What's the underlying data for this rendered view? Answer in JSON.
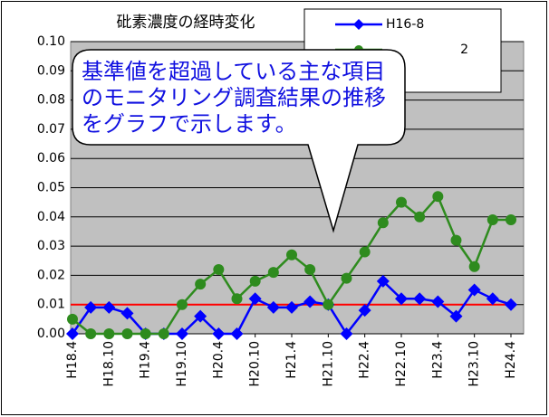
{
  "chart_data": {
    "type": "line",
    "title": "砒素濃度の経時変化",
    "categories": [
      "H18.4",
      null,
      "H18.10",
      null,
      "H19.4",
      null,
      "H19.10",
      null,
      "H20.4",
      null,
      "H20.10",
      null,
      "H21.4",
      null,
      "H21.10",
      null,
      "H22.4",
      null,
      "H22.10",
      null,
      "H23.4",
      null,
      "H23.10",
      null,
      "H24.4"
    ],
    "series": [
      {
        "name": "H16-8",
        "color": "#0000ff",
        "marker": "diamond",
        "values": [
          0,
          0.009,
          0.009,
          0.007,
          0,
          0,
          0,
          0.006,
          0,
          0,
          0.012,
          0.009,
          0.009,
          0.011,
          0.01,
          0,
          0.008,
          0.018,
          0.012,
          0.012,
          0.011,
          0.006,
          0.015,
          0.012,
          0.01
        ]
      },
      {
        "name": "2",
        "color": "#2e8b1e",
        "marker": "circle",
        "values": [
          0.005,
          0,
          0,
          0,
          0,
          0,
          0.01,
          0.017,
          0.022,
          0.012,
          0.018,
          0.021,
          0.027,
          0.022,
          0.01,
          0.019,
          0.028,
          0.038,
          0.045,
          0.04,
          0.047,
          0.032,
          0.023,
          0.039,
          0.039
        ]
      }
    ],
    "reference_line": {
      "value": 0.01,
      "color": "#ff0000"
    },
    "ylim": [
      0,
      0.1
    ],
    "yticks": [
      {
        "value": 0,
        "label": "0.00"
      },
      0.01,
      0.02,
      0.03,
      0.04,
      0.05,
      0.06,
      0.07,
      0.08,
      0.09,
      {
        "value": 0.1,
        "label": "0.10"
      }
    ],
    "grid": true,
    "plot_background": "#c0c0c0"
  },
  "callout": {
    "lines": [
      "基準値を超過している主な項目",
      "のモニタリング調査結果の推移",
      "をグラフで示します。"
    ]
  }
}
